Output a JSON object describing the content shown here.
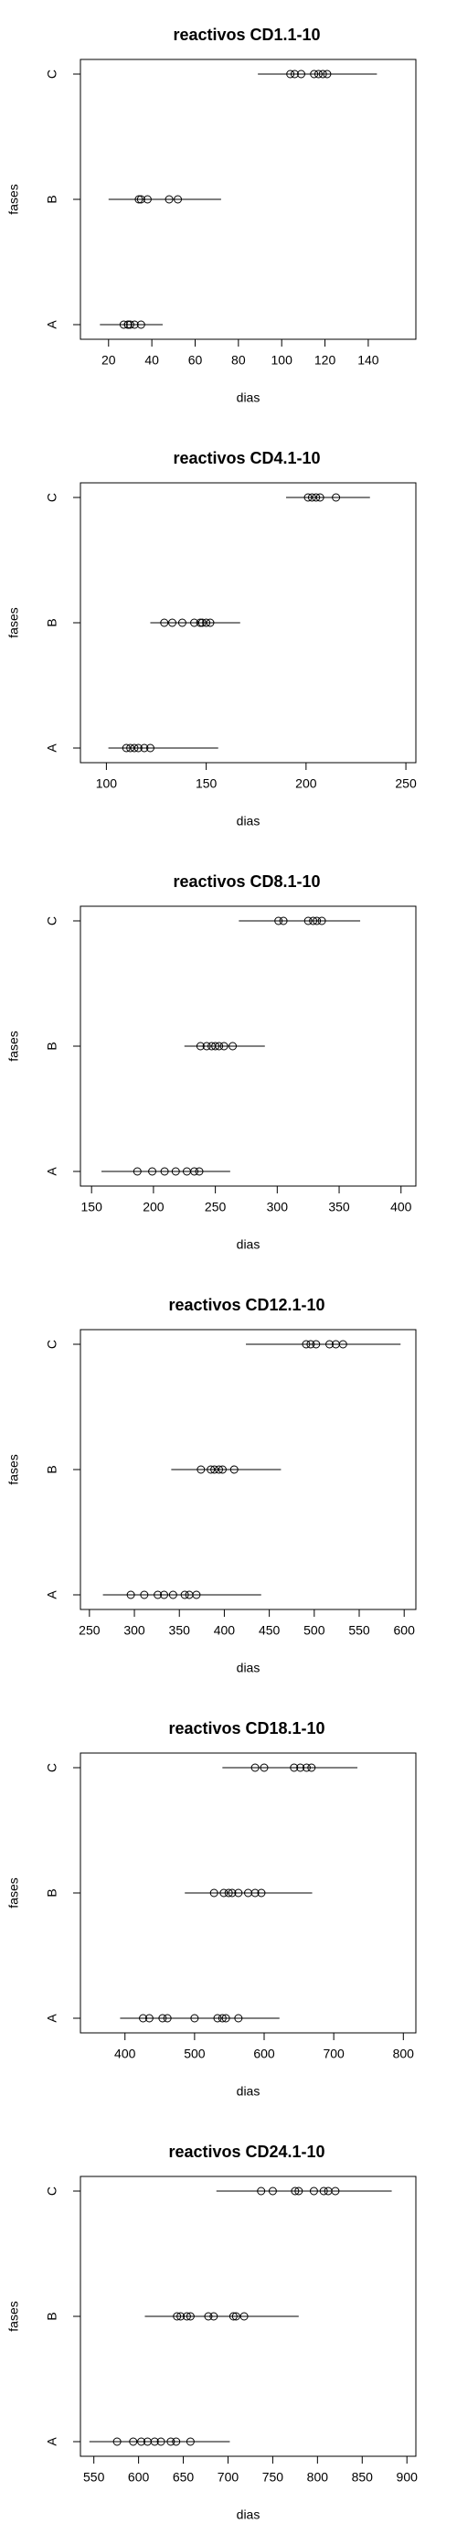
{
  "chart_data": [
    {
      "type": "dotplot",
      "title": "reactivos CD1.1-10",
      "xlabel": "dias",
      "ylabel": "fases",
      "categories": [
        "A",
        "B",
        "C"
      ],
      "points": [
        [
          27,
          29,
          29,
          30,
          32,
          35
        ],
        [
          34,
          35,
          38,
          48,
          52
        ],
        [
          104,
          106,
          109,
          115,
          117,
          119,
          121
        ]
      ],
      "ranges": [
        [
          16,
          45
        ],
        [
          20,
          72
        ],
        [
          89,
          144
        ]
      ],
      "xlim": [
        7,
        162
      ],
      "xticks": [
        20,
        40,
        60,
        80,
        100,
        120,
        140
      ]
    },
    {
      "type": "dotplot",
      "title": "reactivos CD4.1-10",
      "xlabel": "dias",
      "ylabel": "fases",
      "categories": [
        "A",
        "B",
        "C"
      ],
      "points": [
        [
          110,
          112,
          114,
          116,
          119,
          122
        ],
        [
          129,
          133,
          138,
          144,
          147,
          148,
          150,
          152
        ],
        [
          201,
          203,
          205,
          207,
          215
        ]
      ],
      "ranges": [
        [
          101,
          156
        ],
        [
          122,
          167
        ],
        [
          190,
          232
        ]
      ],
      "xlim": [
        87,
        255
      ],
      "xticks": [
        100,
        150,
        200,
        250
      ]
    },
    {
      "type": "dotplot",
      "title": "reactivos CD8.1-10",
      "xlabel": "dias",
      "ylabel": "fases",
      "categories": [
        "A",
        "B",
        "C"
      ],
      "points": [
        [
          187,
          199,
          209,
          218,
          227,
          233,
          237
        ],
        [
          238,
          243,
          247,
          250,
          253,
          257,
          264
        ],
        [
          301,
          305,
          325,
          329,
          332,
          336
        ]
      ],
      "ranges": [
        [
          158,
          262
        ],
        [
          225,
          290
        ],
        [
          269,
          367
        ]
      ],
      "xlim": [
        141,
        412
      ],
      "xticks": [
        150,
        200,
        250,
        300,
        350,
        400
      ]
    },
    {
      "type": "dotplot",
      "title": "reactivos CD12.1-10",
      "xlabel": "dias",
      "ylabel": "fases",
      "categories": [
        "A",
        "B",
        "C"
      ],
      "points": [
        [
          296,
          311,
          326,
          333,
          343,
          356,
          361,
          369
        ],
        [
          374,
          385,
          389,
          394,
          398,
          411
        ],
        [
          491,
          496,
          502,
          517,
          524,
          532
        ]
      ],
      "ranges": [
        [
          265,
          441
        ],
        [
          341,
          463
        ],
        [
          424,
          596
        ]
      ],
      "xlim": [
        240,
        613
      ],
      "xticks": [
        250,
        300,
        350,
        400,
        450,
        500,
        550,
        600
      ]
    },
    {
      "type": "dotplot",
      "title": "reactivos CD18.1-10",
      "xlabel": "dias",
      "ylabel": "fases",
      "categories": [
        "A",
        "B",
        "C"
      ],
      "points": [
        [
          426,
          435,
          454,
          461,
          500,
          533,
          540,
          545,
          563
        ],
        [
          528,
          542,
          549,
          554,
          563,
          577,
          587,
          596
        ],
        [
          587,
          600,
          643,
          652,
          661,
          668
        ]
      ],
      "ranges": [
        [
          393,
          622
        ],
        [
          486,
          669
        ],
        [
          540,
          734
        ]
      ],
      "xlim": [
        336,
        818
      ],
      "xticks": [
        400,
        500,
        600,
        700,
        800
      ]
    },
    {
      "type": "dotplot",
      "title": "reactivos CD24.1-10",
      "xlabel": "dias",
      "ylabel": "fases",
      "categories": [
        "A",
        "B",
        "C"
      ],
      "points": [
        [
          576,
          594,
          603,
          610,
          618,
          625,
          636,
          642,
          658
        ],
        [
          643,
          647,
          654,
          658,
          678,
          684,
          706,
          709,
          718
        ],
        [
          737,
          750,
          775,
          779,
          796,
          807,
          812,
          820
        ]
      ],
      "ranges": [
        [
          545,
          702
        ],
        [
          607,
          779
        ],
        [
          687,
          883
        ]
      ],
      "xlim": [
        535,
        910
      ],
      "xticks": [
        550,
        600,
        650,
        700,
        750,
        800,
        850,
        900
      ]
    }
  ]
}
